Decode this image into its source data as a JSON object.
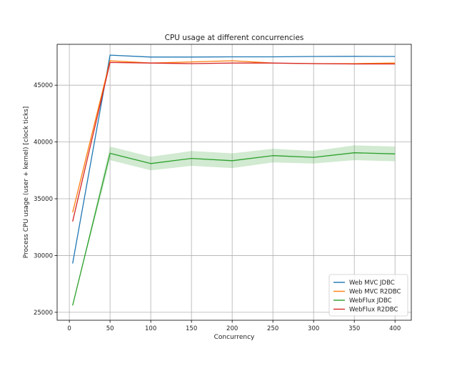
{
  "chart_data": {
    "type": "line",
    "title": "CPU usage at different concurrencies",
    "xlabel": "Concurrency",
    "ylabel": "Process CPU usage (user + kernel) [clock ticks]",
    "xlim": [
      -15,
      420
    ],
    "ylim": [
      24300,
      48600
    ],
    "xticks": [
      0,
      50,
      100,
      150,
      200,
      250,
      300,
      350,
      400
    ],
    "yticks": [
      25000,
      30000,
      35000,
      40000,
      45000
    ],
    "grid": true,
    "legend_position": "lower-right",
    "x": [
      4,
      50,
      100,
      150,
      200,
      250,
      300,
      350,
      400
    ],
    "series": [
      {
        "name": "Web MVC JDBC",
        "color": "#1f77b4",
        "values": [
          29300,
          47650,
          47480,
          47480,
          47500,
          47500,
          47530,
          47540,
          47530
        ]
      },
      {
        "name": "Web MVC R2DBC",
        "color": "#ff7f0e",
        "values": [
          33800,
          47150,
          46950,
          47050,
          47150,
          46950,
          46900,
          46900,
          46950
        ]
      },
      {
        "name": "WebFlux JDBC",
        "color": "#2ca02c",
        "values": [
          25600,
          39000,
          38100,
          38550,
          38350,
          38800,
          38650,
          39050,
          38950
        ],
        "band_low": [
          25600,
          38400,
          37500,
          37900,
          37700,
          38200,
          38100,
          38400,
          38300
        ],
        "band_high": [
          25600,
          39600,
          38700,
          39200,
          39000,
          39400,
          39200,
          39700,
          39600
        ]
      },
      {
        "name": "WebFlux R2DBC",
        "color": "#d62728",
        "values": [
          33000,
          47000,
          46950,
          46900,
          46950,
          46950,
          46900,
          46870,
          46870
        ]
      }
    ]
  }
}
